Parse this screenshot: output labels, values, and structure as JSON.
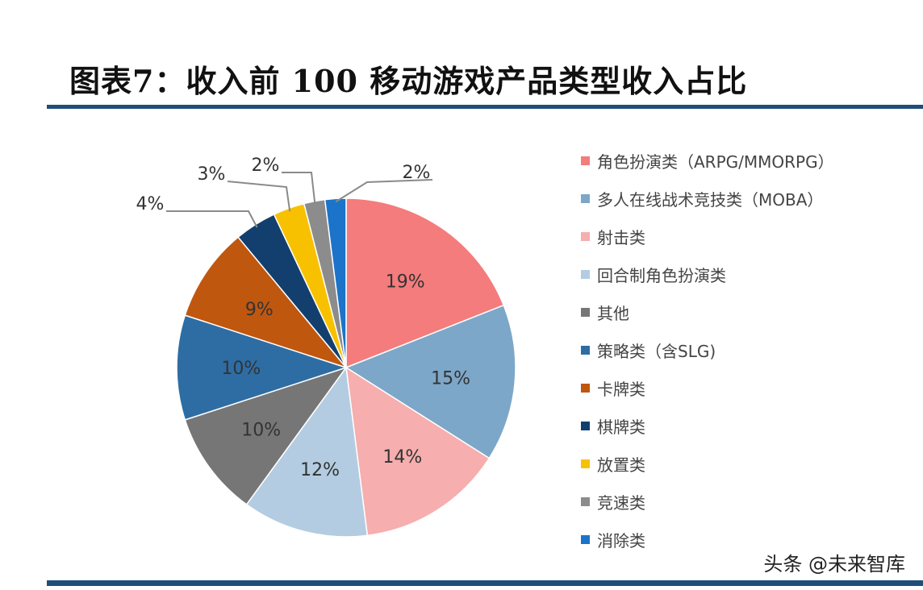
{
  "header": {
    "title": "图表7：收入前 100 移动游戏产品类型收入占比"
  },
  "watermark": "头条 @未来智库",
  "chart_data": {
    "type": "pie",
    "title": "图表7：收入前 100 移动游戏产品类型收入占比",
    "start_angle_deg": 0,
    "direction": "clockwise",
    "legend_position": "right",
    "slices": [
      {
        "label": "角色扮演类（ARPG/MMORPG）",
        "value": 19,
        "value_label": "19%",
        "color": "#f47c7c"
      },
      {
        "label": "多人在线战术竞技类（MOBA）",
        "value": 15,
        "value_label": "15%",
        "color": "#7da7c8"
      },
      {
        "label": "射击类",
        "value": 14,
        "value_label": "14%",
        "color": "#f6aeae"
      },
      {
        "label": "回合制角色扮演类",
        "value": 12,
        "value_label": "12%",
        "color": "#b3cce1"
      },
      {
        "label": "其他",
        "value": 10,
        "value_label": "10%",
        "color": "#767676"
      },
      {
        "label": "策略类（含SLG)",
        "value": 10,
        "value_label": "10%",
        "color": "#2e6da4"
      },
      {
        "label": "卡牌类",
        "value": 9,
        "value_label": "9%",
        "color": "#c0570f"
      },
      {
        "label": "棋牌类",
        "value": 4,
        "value_label": "4%",
        "color": "#123f6e"
      },
      {
        "label": "放置类",
        "value": 3,
        "value_label": "3%",
        "color": "#f8c100"
      },
      {
        "label": "竞速类",
        "value": 2,
        "value_label": "2%",
        "color": "#8c8c8c"
      },
      {
        "label": "消除类",
        "value": 2,
        "value_label": "2%",
        "color": "#1b74c9"
      }
    ]
  }
}
